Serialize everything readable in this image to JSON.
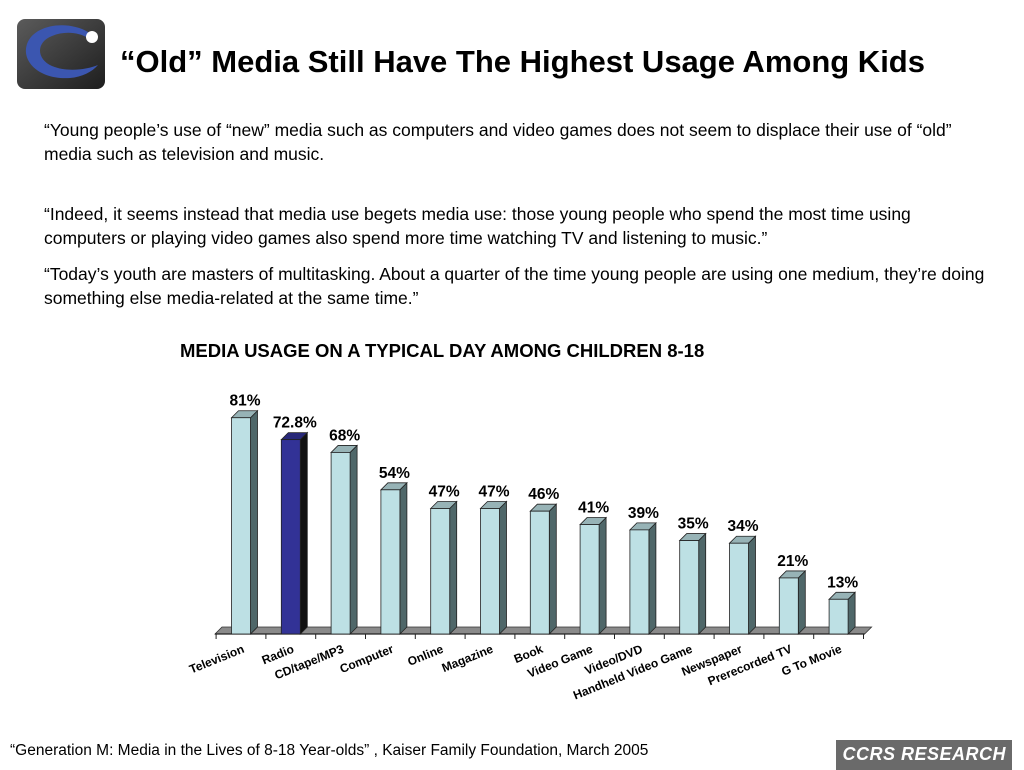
{
  "header": {
    "title": "“Old” Media Still Have The Highest Usage Among Kids"
  },
  "quotes": [
    "“Young people’s use of “new” media such as computers and video games does not seem to displace their use of  “old” media such as television and music.",
    "“Indeed, it seems instead that media use begets media use:  those young people who spend the most time using computers or playing video games also spend more time watching TV and listening to music.”",
    "“Today’s youth are masters of multitasking.  About a quarter of the time young people are using one medium, they’re doing something else media-related at the same time.”"
  ],
  "chart_data": {
    "type": "bar",
    "title": "MEDIA USAGE ON A TYPICAL DAY AMONG CHILDREN 8-18",
    "categories": [
      "Television",
      "Radio",
      "CD/tape/MP3",
      "Computer",
      "Online",
      "Magazine",
      "Book",
      "Video Game",
      "Video/DVD",
      "Handheld Video Game",
      "Newspaper",
      "Prerecorded TV",
      "G To Movie"
    ],
    "values": [
      81,
      72.8,
      68,
      54,
      47,
      47,
      46,
      41,
      39,
      35,
      34,
      21,
      13
    ],
    "value_labels": [
      "81%",
      "72.8%",
      "68%",
      "54%",
      "47%",
      "47%",
      "46%",
      "41%",
      "39%",
      "35%",
      "34%",
      "21%",
      "13%"
    ],
    "xlabel": "",
    "ylabel": "",
    "ylim": [
      0,
      90
    ],
    "grid": false,
    "legend": "none",
    "bar_color": "#bde0e4",
    "highlight_index": 1,
    "highlight_color": "#323296"
  },
  "footer": {
    "source": "“Generation M:  Media in the Lives of 8-18 Year-olds” , Kaiser Family Foundation, March 2005",
    "brand": "CCRS RESEARCH"
  },
  "icons": {
    "logo": "logo-icon"
  }
}
